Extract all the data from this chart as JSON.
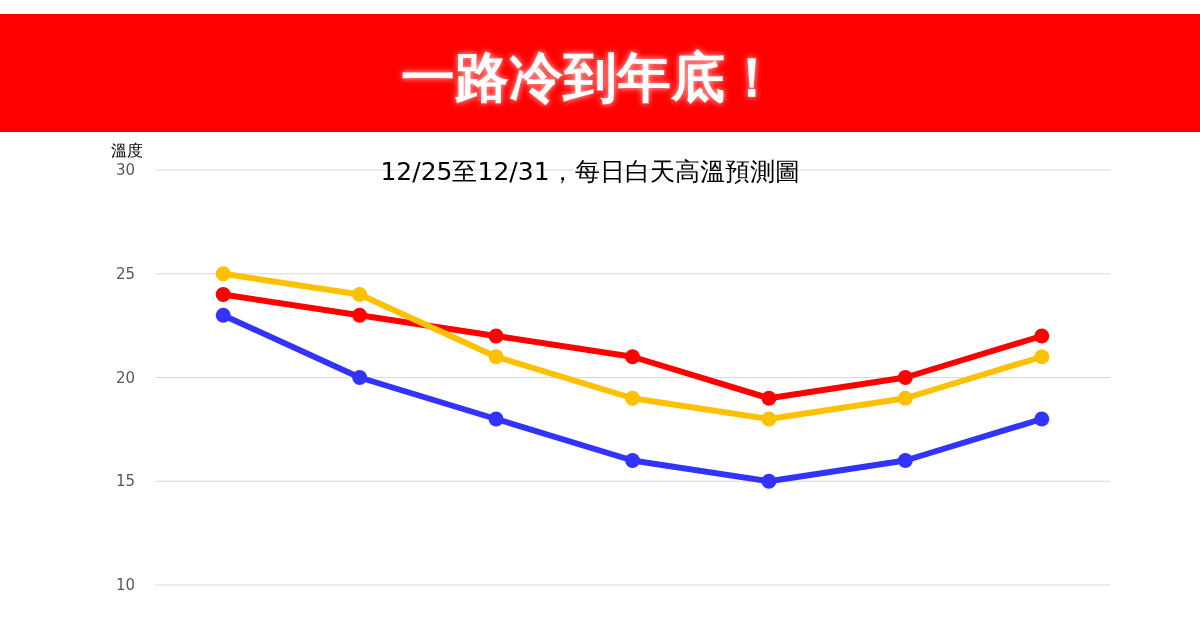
{
  "chart_data": {
    "type": "line",
    "title": "一路冷到年底！",
    "subtitle": "12/25至12/31，每日白天高溫預測圖",
    "ylabel": "溫度",
    "categories": [
      null,
      null,
      null,
      null,
      null,
      null,
      null
    ],
    "series": [
      {
        "color": "#ff0000",
        "values": [
          24,
          23,
          22,
          21,
          19,
          20,
          22
        ]
      },
      {
        "color": "#ffc000",
        "values": [
          25,
          24,
          21,
          19,
          18,
          19,
          21
        ]
      },
      {
        "color": "#3333ff",
        "values": [
          23,
          20,
          18,
          16,
          15,
          16,
          18
        ]
      }
    ],
    "ylim": [
      10,
      30
    ],
    "yticks": [
      10,
      15,
      20,
      25,
      30
    ],
    "grid": "y",
    "marker": "circle",
    "line_style": "solid"
  }
}
